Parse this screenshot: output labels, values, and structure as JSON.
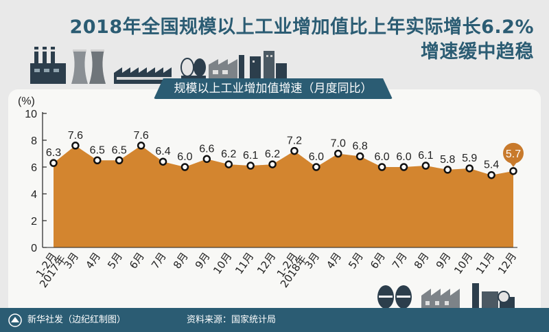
{
  "title": {
    "line1": "2018年全国规模以上工业增加值比上年实际增长6.2%",
    "line2": "增速缓中趋稳"
  },
  "banner": "规模以上工业增加值增速（月度同比）",
  "footer": {
    "source": "新华社发（边纪红制图）",
    "data_source": "资料来源：国家统计局"
  },
  "icons": [
    "factory-chimneys-icon",
    "cooling-towers-icon",
    "workshop-icon",
    "storage-tanks-icon",
    "plant-icon",
    "city-building-icon",
    "xinhua-logo-icon"
  ],
  "colors": {
    "area": "#d3852f",
    "highlight": "#c87a2c",
    "accent": "#2b5c73"
  },
  "chart_data": {
    "type": "area",
    "ylabel": "(%)",
    "ylim": [
      0,
      10
    ],
    "yticks": [
      "0",
      "2",
      "4",
      "6",
      "8",
      "10"
    ],
    "categories": [
      "1-2月",
      "3月",
      "4月",
      "5月",
      "6月",
      "7月",
      "8月",
      "9月",
      "10月",
      "11月",
      "12月",
      "1-2月",
      "3月",
      "4月",
      "5月",
      "6月",
      "7月",
      "8月",
      "9月",
      "10月",
      "11月",
      "12月"
    ],
    "year_labels": [
      "2017年",
      "2018年"
    ],
    "values": [
      6.3,
      7.6,
      6.5,
      6.5,
      7.6,
      6.4,
      6.0,
      6.6,
      6.2,
      6.1,
      6.2,
      7.2,
      6.0,
      7.0,
      6.8,
      6.0,
      6.0,
      6.1,
      5.8,
      5.9,
      5.4,
      5.7
    ],
    "value_labels": [
      "6.3",
      "7.6",
      "6.5",
      "6.5",
      "7.6",
      "6.4",
      "6.0",
      "6.6",
      "6.2",
      "6.1",
      "6.2",
      "7.2",
      "6.0",
      "7.0",
      "6.8",
      "6.0",
      "6.0",
      "6.1",
      "5.8",
      "5.9",
      "5.4",
      "5.7"
    ],
    "highlight_index": 21,
    "grid": false
  }
}
